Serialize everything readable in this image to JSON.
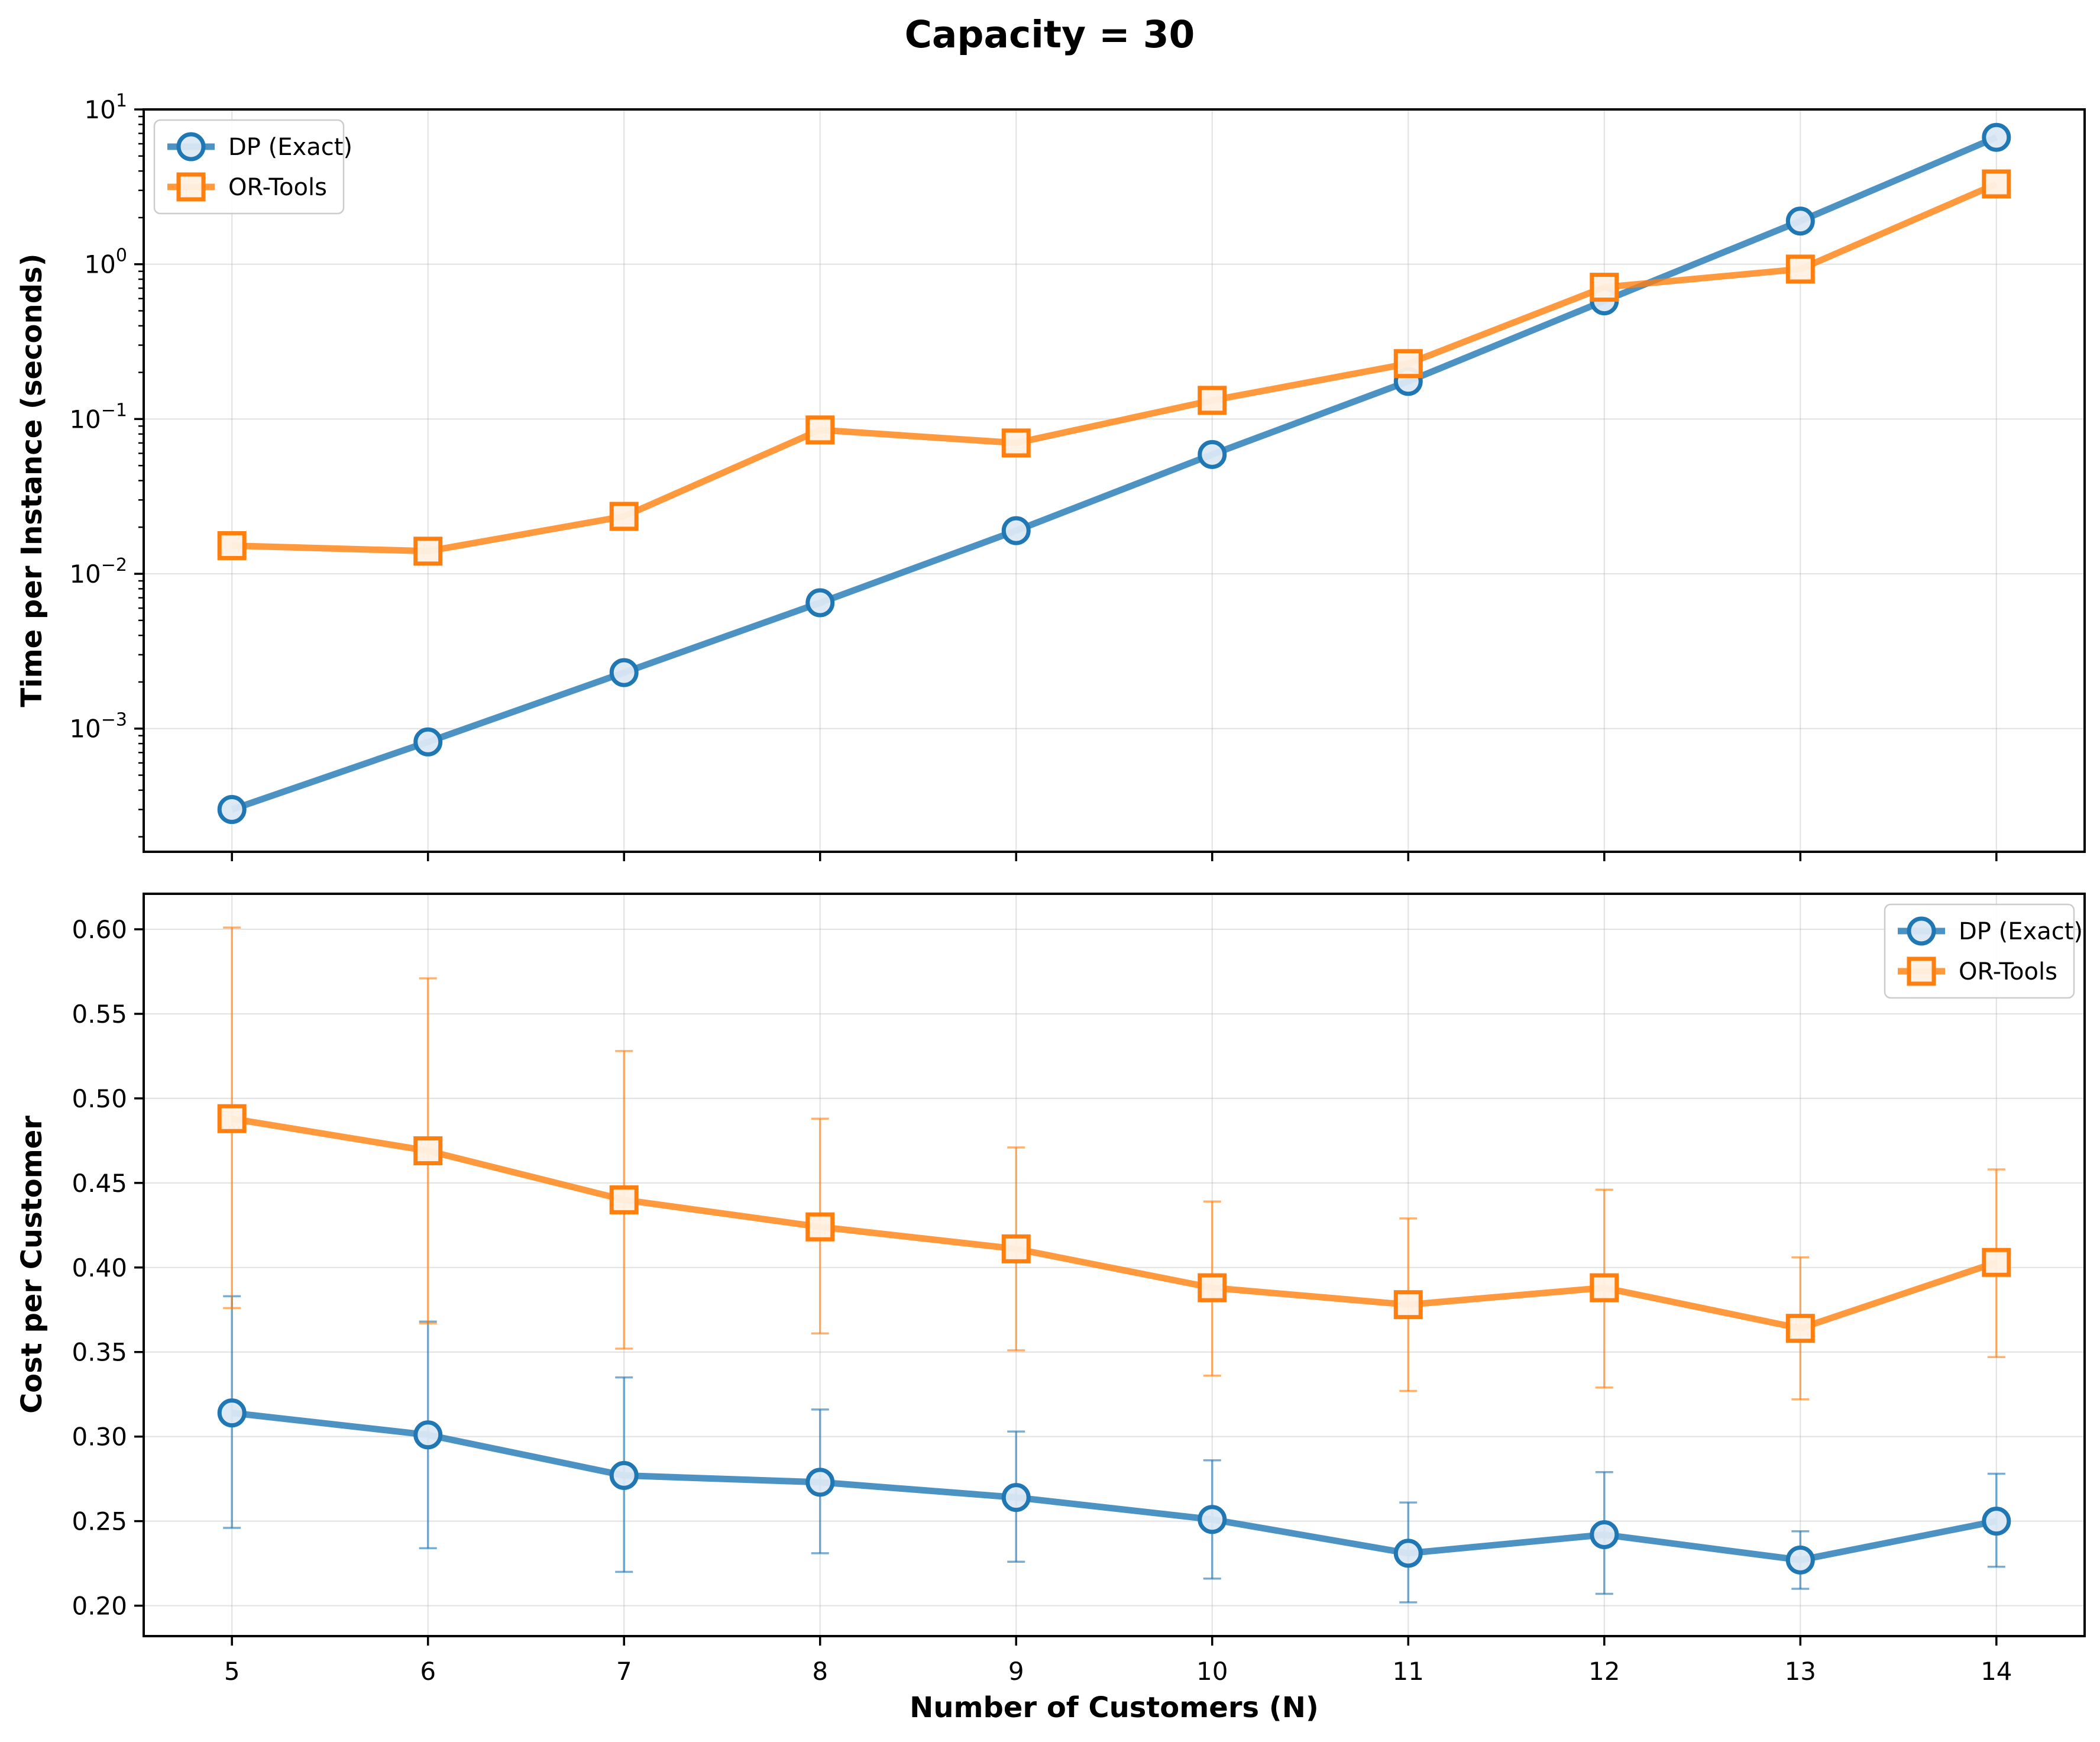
{
  "figure_title": "Capacity = 30",
  "colors": {
    "dp": "#1f77b4",
    "ortools": "#ff7f0e"
  },
  "chart_data": [
    {
      "type": "line",
      "xlabel": "Number of Customers (N)",
      "ylabel": "Time per Instance (seconds)",
      "yscale": "log",
      "ylim": [
        0.00016,
        10
      ],
      "xlim": [
        4.55,
        14.45
      ],
      "grid": true,
      "legend_position": "top-left",
      "x": [
        5,
        6,
        7,
        8,
        9,
        10,
        11,
        12,
        13,
        14
      ],
      "x_tick_labels": [
        "5",
        "6",
        "7",
        "8",
        "9",
        "10",
        "11",
        "12",
        "13",
        "14"
      ],
      "y_ticks": [
        {
          "value": 0.001,
          "base": "10",
          "exp": "−3"
        },
        {
          "value": 0.01,
          "base": "10",
          "exp": "−2"
        },
        {
          "value": 0.1,
          "base": "10",
          "exp": "−1"
        },
        {
          "value": 1,
          "base": "10",
          "exp": "0"
        },
        {
          "value": 10,
          "base": "10",
          "exp": "1"
        }
      ],
      "series": [
        {
          "name": "DP (Exact)",
          "marker": "circle",
          "values": [
            0.0003,
            0.00082,
            0.0023,
            0.0065,
            0.019,
            0.059,
            0.175,
            0.58,
            1.9,
            6.6
          ]
        },
        {
          "name": "OR-Tools",
          "marker": "square",
          "values": [
            0.0152,
            0.014,
            0.0235,
            0.085,
            0.07,
            0.132,
            0.228,
            0.71,
            0.93,
            3.3
          ]
        }
      ]
    },
    {
      "type": "line",
      "xlabel": "Number of Customers (N)",
      "ylabel": "Cost per Customer",
      "yscale": "linear",
      "ylim": [
        0.182,
        0.621
      ],
      "xlim": [
        4.55,
        14.45
      ],
      "grid": true,
      "legend_position": "top-right",
      "x": [
        5,
        6,
        7,
        8,
        9,
        10,
        11,
        12,
        13,
        14
      ],
      "x_tick_labels": [
        "5",
        "6",
        "7",
        "8",
        "9",
        "10",
        "11",
        "12",
        "13",
        "14"
      ],
      "y_ticks": [
        "0.20",
        "0.25",
        "0.30",
        "0.35",
        "0.40",
        "0.45",
        "0.50",
        "0.55",
        "0.60"
      ],
      "series": [
        {
          "name": "DP (Exact)",
          "marker": "circle",
          "values": [
            0.314,
            0.301,
            0.277,
            0.273,
            0.264,
            0.251,
            0.231,
            0.242,
            0.227,
            0.25
          ],
          "err_low": [
            0.246,
            0.234,
            0.22,
            0.231,
            0.226,
            0.216,
            0.202,
            0.207,
            0.21,
            0.223
          ],
          "err_high": [
            0.383,
            0.368,
            0.335,
            0.316,
            0.303,
            0.286,
            0.261,
            0.279,
            0.244,
            0.278
          ]
        },
        {
          "name": "OR-Tools",
          "marker": "square",
          "values": [
            0.488,
            0.469,
            0.44,
            0.424,
            0.411,
            0.388,
            0.378,
            0.388,
            0.364,
            0.403
          ],
          "err_low": [
            0.376,
            0.367,
            0.352,
            0.361,
            0.351,
            0.336,
            0.327,
            0.329,
            0.322,
            0.347
          ],
          "err_high": [
            0.601,
            0.571,
            0.528,
            0.488,
            0.471,
            0.439,
            0.429,
            0.446,
            0.406,
            0.458
          ]
        }
      ]
    }
  ]
}
